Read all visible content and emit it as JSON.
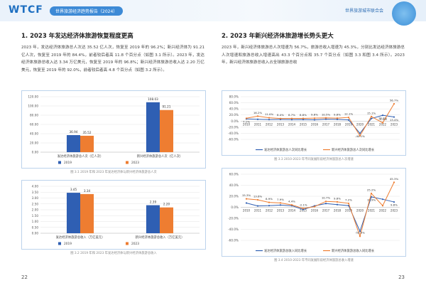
{
  "header": {
    "logo": "WTCF",
    "report_title": "世界旅游经济趋势报告（2024）",
    "organization": "世界旅游城市联合会"
  },
  "sections": [
    {
      "title": "1. 2023 年发达经济体旅游恢复程度更高",
      "text": "2023 年，发达经济体旅游总人次达 35.52 亿人次，恢复至 2019 年的 96.2%；新兴经济体为 91.21 亿人次，恢复至 2019 年的 84.4%，前者较后者高 11.8 个百分点（如图 3.1 所示）。2023 年，发达经济体旅游总收入达 3.34 万亿美元，恢复至 2019 年的 96.8%；新兴经济体旅游总收入达 2.20 万亿美元，恢复至 2019 年的 92.0%，前者较后者高 4.8 个百分点（如图 3.2 所示）。"
    },
    {
      "title": "2. 2023 年新兴经济体旅游增长势头更大",
      "text": "2023 年，新兴经济体旅游总人次增速为 56.7%，旅游总收入增速为 45.3%，分别比发达经济体旅游总人次增速和旅游总收入增速高出 43.3 个百分点和 35.7 个百分点（如图 3.3 和图 3.4 所示）。2023 年，新兴经济体旅游总收入占全球旅游总收"
    }
  ],
  "chart_data": [
    {
      "type": "bar",
      "caption": "图 3.1 2019 年和 2023 年发达经济体与新兴经济体旅游总人次",
      "categories": [
        "发达经济体旅游总人次（亿人次）",
        "新兴经济体旅游总人次（亿人次）"
      ],
      "series": [
        {
          "name": "2019",
          "color": "#2f5fb3",
          "values": [
            36.94,
            108.03
          ]
        },
        {
          "name": "2023",
          "color": "#ee7d31",
          "values": [
            35.52,
            91.21
          ]
        }
      ],
      "ylim": [
        0,
        120
      ],
      "yticks": [
        {
          "value": 0,
          "label": "0.00"
        },
        {
          "value": 20,
          "label": "20.00"
        },
        {
          "value": 40,
          "label": "40.00"
        },
        {
          "value": 60,
          "label": "60.00"
        },
        {
          "value": 80,
          "label": "80.00"
        },
        {
          "value": 100,
          "label": "100.00"
        },
        {
          "value": 120,
          "label": "120.00"
        }
      ],
      "grid": true
    },
    {
      "type": "bar",
      "caption": "图 3.2 2019 年和 2023 年发达经济体与新兴经济体旅游总收入",
      "categories": [
        "发达经济体旅游总收入（万亿美元）",
        "新兴经济体旅游总收入（万亿美元）"
      ],
      "series": [
        {
          "name": "2019",
          "color": "#2f5fb3",
          "values": [
            3.45,
            2.39
          ]
        },
        {
          "name": "2023",
          "color": "#ee7d31",
          "values": [
            3.34,
            2.2
          ],
          "value_labels": [
            "3.34",
            "2.20"
          ]
        }
      ],
      "ylim": [
        0,
        4
      ],
      "yticks": [
        {
          "value": 0,
          "label": "0.00"
        },
        {
          "value": 0.5,
          "label": "0.50"
        },
        {
          "value": 1,
          "label": "1.00"
        },
        {
          "value": 1.5,
          "label": "1.50"
        },
        {
          "value": 2,
          "label": "2.00"
        },
        {
          "value": 2.5,
          "label": "2.50"
        },
        {
          "value": 3,
          "label": "3.00"
        },
        {
          "value": 3.5,
          "label": "3.50"
        },
        {
          "value": 4,
          "label": "4.00"
        }
      ],
      "grid": true
    },
    {
      "type": "line",
      "caption": "图 3.3 2010-2023 年不同发展阶段经济体旅游总人次增速",
      "categories": [
        "2010",
        "2011",
        "2012",
        "2013",
        "2014",
        "2015",
        "2016",
        "2017",
        "2018",
        "2019",
        "2020",
        "2021",
        "2022",
        "2023"
      ],
      "series": [
        {
          "name": "发达经济体旅游总人次同比增长",
          "color": "#2f5fb3",
          "values": [
            7.1,
            5.9,
            4.9,
            5.2,
            4.7,
            5.0,
            4.1,
            6.3,
            5.6,
            3.9,
            -40.1,
            8.5,
            19.1,
            13.4
          ],
          "value_labels": [
            "7.1%",
            null,
            null,
            null,
            null,
            null,
            null,
            null,
            null,
            null,
            "-40.1%",
            null,
            "19.1%",
            "13.4%"
          ]
        },
        {
          "name": "新兴经济体旅游总人次同比增长",
          "color": "#ee7d31",
          "values": [
            9.3,
            16.2,
            11.0,
            8.4,
            8.7,
            8.8,
            9.6,
            10.5,
            9.8,
            12.1,
            -48.0,
            15.1,
            -5.5,
            56.7
          ],
          "value_labels": [
            null,
            "16.2%",
            "11.0%",
            "8.4%",
            "8.7%",
            "8.8%",
            "9.6%",
            "10.5%",
            "9.8%",
            "12.1%",
            null,
            "15.1%",
            "-5.5%",
            "56.7%"
          ]
        }
      ],
      "ylim": [
        -60,
        80
      ],
      "yticks": [
        {
          "value": -60,
          "label": "-60.0%"
        },
        {
          "value": -40,
          "label": "-40.0%"
        },
        {
          "value": -20,
          "label": "-20.0%"
        },
        {
          "value": 0,
          "label": "0.0%"
        },
        {
          "value": 20,
          "label": "20.0%"
        },
        {
          "value": 40,
          "label": "40.0%"
        },
        {
          "value": 60,
          "label": "60.0%"
        },
        {
          "value": 80,
          "label": "80.0%"
        }
      ],
      "grid": true
    },
    {
      "type": "line",
      "caption": "图 3.4 2010-2023 年不同发展阶段经济体旅游总收入增速",
      "categories": [
        "2010",
        "2011",
        "2012",
        "2013",
        "2014",
        "2015",
        "2016",
        "2017",
        "2018",
        "2019",
        "2020",
        "2021",
        "2022",
        "2023"
      ],
      "series": [
        {
          "name": "发达经济体旅游总收入同比增长",
          "color": "#2f5fb3",
          "values": [
            7.7,
            2.5,
            3.0,
            4.1,
            2.8,
            -4.0,
            2.6,
            6.8,
            4.9,
            3.1,
            -43.5,
            18.9,
            14.6,
            9.6
          ],
          "value_labels": [
            null,
            null,
            null,
            null,
            null,
            null,
            null,
            null,
            null,
            null,
            null,
            "18.9%",
            null,
            "9.6%"
          ]
        },
        {
          "name": "新兴经济体旅游总收入同比增长",
          "color": "#ee7d31",
          "values": [
            15.3,
            13.6,
            8.9,
            7.9,
            4.4,
            -2.1,
            1.2,
            10.7,
            9.8,
            7.2,
            -52.5,
            25.2,
            2.9,
            45.3
          ],
          "value_labels": [
            "15.3%",
            "13.6%",
            "8.9%",
            "7.9%",
            "4.4%",
            "-2.1%",
            null,
            "10.7%",
            "9.8%",
            "7.2%",
            "-52.5%",
            "25.2%",
            null,
            "45.3%"
          ]
        }
      ],
      "ylim": [
        -60,
        60
      ],
      "yticks": [
        {
          "value": -60,
          "label": "-60.0%"
        },
        {
          "value": -40,
          "label": "-40.0%"
        },
        {
          "value": -20,
          "label": "-20.0%"
        },
        {
          "value": 0,
          "label": "0.0%"
        },
        {
          "value": 20,
          "label": "20.0%"
        },
        {
          "value": 40,
          "label": "40.0%"
        },
        {
          "value": 60,
          "label": "60.0%"
        }
      ],
      "grid": true
    }
  ],
  "footer": {
    "left_page": "22",
    "right_page": "23"
  }
}
